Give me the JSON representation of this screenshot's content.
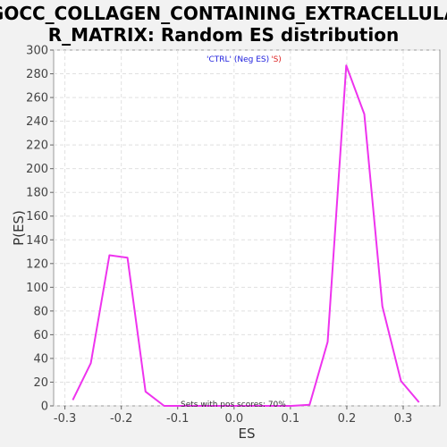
{
  "chart_data": {
    "type": "line",
    "title_lines": [
      "GOCC_COLLAGEN_CONTAINING_EXTRACELLULA",
      "R_MATRIX: Random ES distribution"
    ],
    "xlabel": "ES",
    "ylabel": "P(ES)",
    "xlim": [
      -0.32,
      0.365
    ],
    "ylim": [
      0,
      300
    ],
    "x_ticks": [
      -0.3,
      -0.2,
      -0.1,
      0.0,
      0.1,
      0.2,
      0.3
    ],
    "x_tick_labels": [
      "-0.3",
      "-0.2",
      "-0.1",
      "0.0",
      "0.1",
      "0.2",
      "0.3"
    ],
    "y_ticks": [
      0,
      20,
      40,
      60,
      80,
      100,
      120,
      140,
      160,
      180,
      200,
      220,
      240,
      260,
      280,
      300
    ],
    "y_tick_labels": [
      "0",
      "20",
      "40",
      "60",
      "80",
      "100",
      "120",
      "140",
      "160",
      "180",
      "200",
      "220",
      "240",
      "260",
      "280",
      "300"
    ],
    "grid": true,
    "legend_position": "top-center",
    "legend_parts": [
      {
        "text": "'CTRL' (Neg ES)",
        "color": "#2222dd"
      },
      {
        "text": "'S)",
        "color": "#dd2222"
      }
    ],
    "annotation": "Sets with pos scores: 70%",
    "series": [
      {
        "color": "#ee33ee",
        "x": [
          -0.286,
          -0.254,
          -0.221,
          -0.189,
          -0.157,
          -0.124,
          -0.092,
          -0.06,
          -0.027,
          0.005,
          0.037,
          0.07,
          0.102,
          0.134,
          0.166,
          0.199,
          0.231,
          0.263,
          0.296,
          0.328
        ],
        "y": [
          5,
          36,
          127,
          125,
          12,
          0,
          0,
          0,
          0,
          0,
          0,
          0,
          0,
          1,
          54,
          287,
          246,
          84,
          21,
          3
        ]
      }
    ]
  }
}
